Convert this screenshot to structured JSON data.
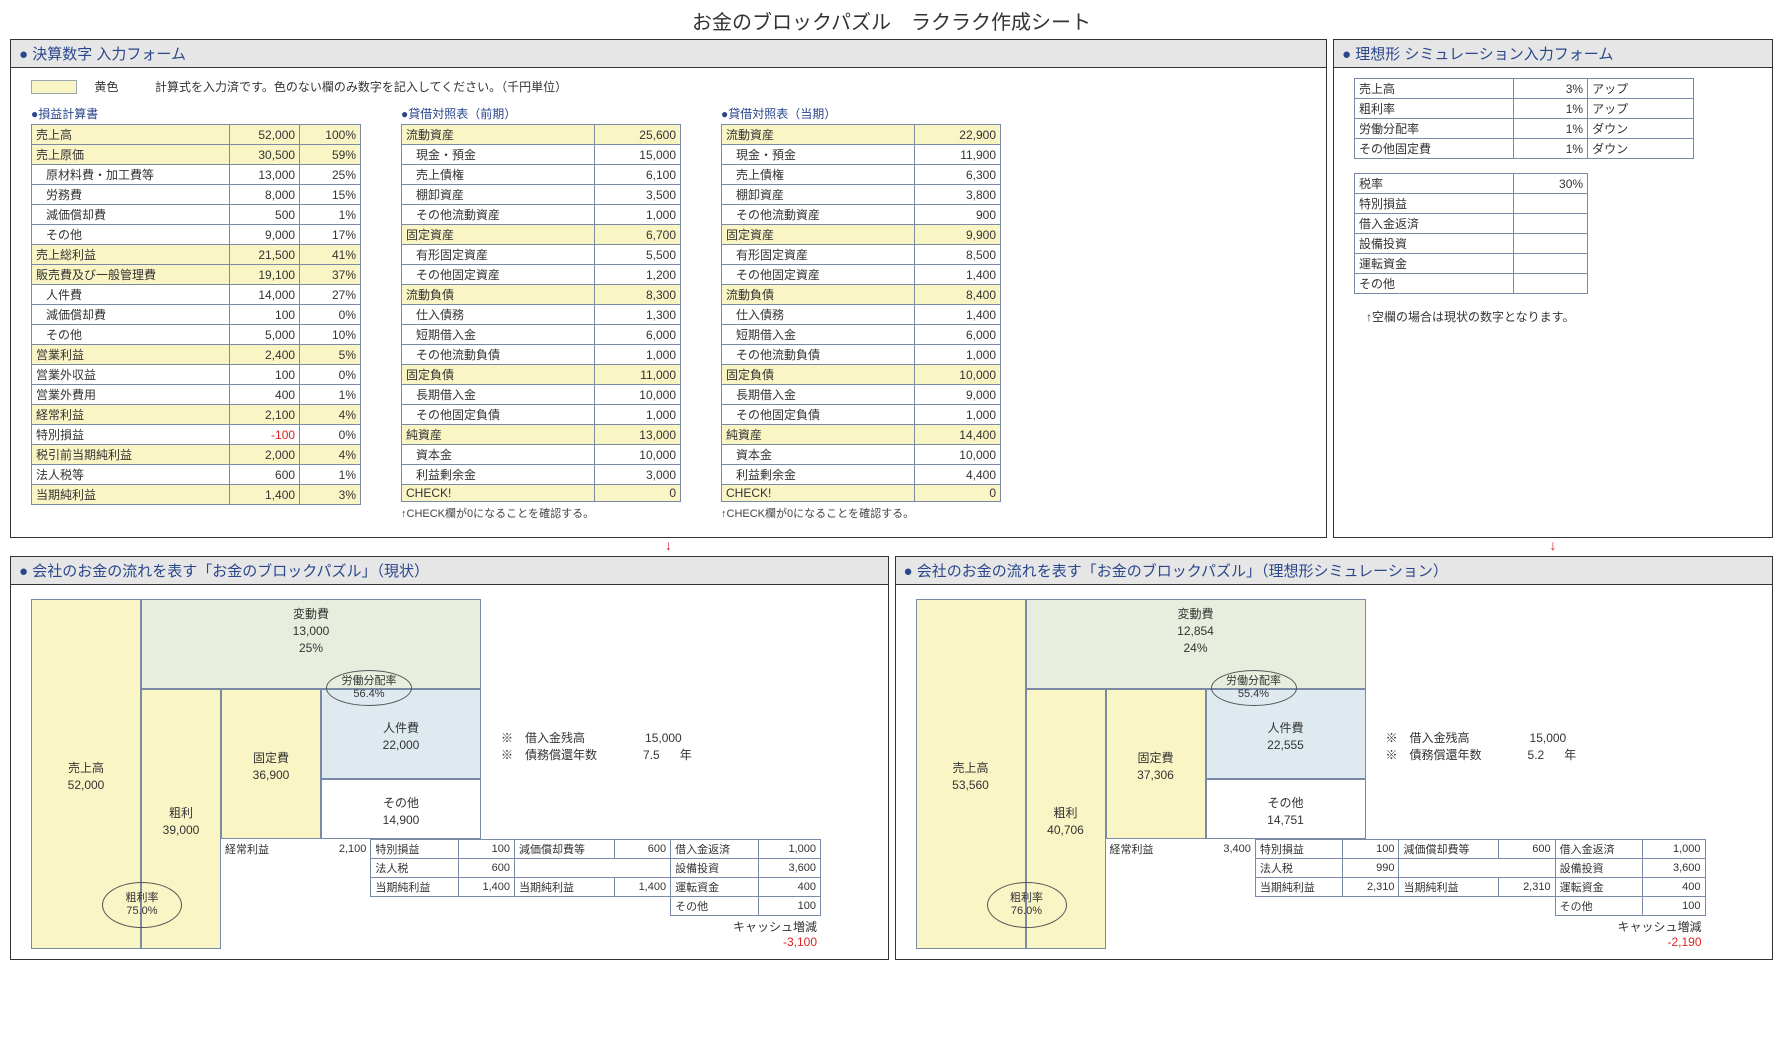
{
  "title": "お金のブロックパズル　ラクラク作成シート",
  "colors": {
    "highlight": "#faf5c5",
    "border": "#7a8aa6",
    "accent": "#2a478c",
    "negative": "#d22222",
    "varCost": "#e8eedd",
    "labor": "#dfeaf0",
    "panelHeaderBg": "#e6e6e6"
  },
  "topLeft": {
    "header": "● 決算数字 入力フォーム",
    "hintLabel": "黄色",
    "hintText": "計算式を入力済です。色のない欄のみ数字を記入してください。（千円単位）",
    "pl": {
      "title": "●損益計算書",
      "rows": [
        {
          "label": "売上高",
          "value": "52,000",
          "pct": "100%",
          "hl": true
        },
        {
          "label": "売上原価",
          "value": "30,500",
          "pct": "59%",
          "hl": true
        },
        {
          "label": "原材料費・加工費等",
          "value": "13,000",
          "pct": "25%",
          "indent": true
        },
        {
          "label": "労務費",
          "value": "8,000",
          "pct": "15%",
          "indent": true
        },
        {
          "label": "減価償却費",
          "value": "500",
          "pct": "1%",
          "indent": true
        },
        {
          "label": "その他",
          "value": "9,000",
          "pct": "17%",
          "indent": true
        },
        {
          "label": "売上総利益",
          "value": "21,500",
          "pct": "41%",
          "hl": true
        },
        {
          "label": "販売費及び一般管理費",
          "value": "19,100",
          "pct": "37%",
          "hl": true
        },
        {
          "label": "人件費",
          "value": "14,000",
          "pct": "27%",
          "indent": true
        },
        {
          "label": "減価償却費",
          "value": "100",
          "pct": "0%",
          "indent": true
        },
        {
          "label": "その他",
          "value": "5,000",
          "pct": "10%",
          "indent": true
        },
        {
          "label": "営業利益",
          "value": "2,400",
          "pct": "5%",
          "hl": true
        },
        {
          "label": "営業外収益",
          "value": "100",
          "pct": "0%"
        },
        {
          "label": "営業外費用",
          "value": "400",
          "pct": "1%"
        },
        {
          "label": "経常利益",
          "value": "2,100",
          "pct": "4%",
          "hl": true
        },
        {
          "label": "特別損益",
          "value": "-100",
          "pct": "0%",
          "neg": true
        },
        {
          "label": "税引前当期純利益",
          "value": "2,000",
          "pct": "4%",
          "hl": true
        },
        {
          "label": "法人税等",
          "value": "600",
          "pct": "1%"
        },
        {
          "label": "当期純利益",
          "value": "1,400",
          "pct": "3%",
          "hl": true
        }
      ]
    },
    "bsPrev": {
      "title": "●貸借対照表（前期）",
      "note": "↑CHECK欄が0になることを確認する。",
      "rows": [
        {
          "label": "流動資産",
          "value": "25,600",
          "hl": true
        },
        {
          "label": "現金・預金",
          "value": "15,000",
          "indent": true
        },
        {
          "label": "売上債権",
          "value": "6,100",
          "indent": true
        },
        {
          "label": "棚卸資産",
          "value": "3,500",
          "indent": true
        },
        {
          "label": "その他流動資産",
          "value": "1,000",
          "indent": true
        },
        {
          "label": "固定資産",
          "value": "6,700",
          "hl": true
        },
        {
          "label": "有形固定資産",
          "value": "5,500",
          "indent": true
        },
        {
          "label": "その他固定資産",
          "value": "1,200",
          "indent": true
        },
        {
          "label": "流動負債",
          "value": "8,300",
          "hl": true
        },
        {
          "label": "仕入債務",
          "value": "1,300",
          "indent": true
        },
        {
          "label": "短期借入金",
          "value": "6,000",
          "indent": true
        },
        {
          "label": "その他流動負債",
          "value": "1,000",
          "indent": true
        },
        {
          "label": "固定負債",
          "value": "11,000",
          "hl": true
        },
        {
          "label": "長期借入金",
          "value": "10,000",
          "indent": true
        },
        {
          "label": "その他固定負債",
          "value": "1,000",
          "indent": true
        },
        {
          "label": "純資産",
          "value": "13,000",
          "hl": true
        },
        {
          "label": "資本金",
          "value": "10,000",
          "indent": true
        },
        {
          "label": "利益剰余金",
          "value": "3,000",
          "indent": true
        },
        {
          "label": "CHECK!",
          "value": "0",
          "hl": true
        }
      ]
    },
    "bsCurr": {
      "title": "●貸借対照表（当期）",
      "note": "↑CHECK欄が0になることを確認する。",
      "rows": [
        {
          "label": "流動資産",
          "value": "22,900",
          "hl": true
        },
        {
          "label": "現金・預金",
          "value": "11,900",
          "indent": true
        },
        {
          "label": "売上債権",
          "value": "6,300",
          "indent": true
        },
        {
          "label": "棚卸資産",
          "value": "3,800",
          "indent": true
        },
        {
          "label": "その他流動資産",
          "value": "900",
          "indent": true
        },
        {
          "label": "固定資産",
          "value": "9,900",
          "hl": true
        },
        {
          "label": "有形固定資産",
          "value": "8,500",
          "indent": true
        },
        {
          "label": "その他固定資産",
          "value": "1,400",
          "indent": true
        },
        {
          "label": "流動負債",
          "value": "8,400",
          "hl": true
        },
        {
          "label": "仕入債務",
          "value": "1,400",
          "indent": true
        },
        {
          "label": "短期借入金",
          "value": "6,000",
          "indent": true
        },
        {
          "label": "その他流動負債",
          "value": "1,000",
          "indent": true
        },
        {
          "label": "固定負債",
          "value": "10,000",
          "hl": true
        },
        {
          "label": "長期借入金",
          "value": "9,000",
          "indent": true
        },
        {
          "label": "その他固定負債",
          "value": "1,000",
          "indent": true
        },
        {
          "label": "純資産",
          "value": "14,400",
          "hl": true
        },
        {
          "label": "資本金",
          "value": "10,000",
          "indent": true
        },
        {
          "label": "利益剰余金",
          "value": "4,400",
          "indent": true
        },
        {
          "label": "CHECK!",
          "value": "0",
          "hl": true
        }
      ]
    }
  },
  "topRight": {
    "header": "● 理想形 シミュレーション入力フォーム",
    "table1": [
      {
        "label": "売上高",
        "value": "3%",
        "note": "アップ"
      },
      {
        "label": "粗利率",
        "value": "1%",
        "note": "アップ"
      },
      {
        "label": "労働分配率",
        "value": "1%",
        "note": "ダウン"
      },
      {
        "label": "その他固定費",
        "value": "1%",
        "note": "ダウン"
      }
    ],
    "table2": [
      {
        "label": "税率",
        "value": "30%",
        "note": ""
      },
      {
        "label": "特別損益",
        "value": "",
        "note": ""
      },
      {
        "label": "借入金返済",
        "value": "",
        "note": ""
      },
      {
        "label": "設備投資",
        "value": "",
        "note": ""
      },
      {
        "label": "運転資金",
        "value": "",
        "note": ""
      },
      {
        "label": "その他",
        "value": "",
        "note": ""
      }
    ],
    "hint": "↑空欄の場合は現状の数字となります。"
  },
  "bottomLeft": {
    "header": "● 会社のお金の流れを表す「お金のブロックパズル」（現状）",
    "puzzle": {
      "salesLabel": "売上高",
      "salesValue": "52,000",
      "varLabel": "変動費",
      "varValue": "13,000",
      "varPct": "25%",
      "grossLabel": "粗利",
      "grossValue": "39,000",
      "grossRateLabel": "粗利率",
      "grossRate": "75.0%",
      "fixedLabel": "固定費",
      "fixedValue": "36,900",
      "laborLabel": "人件費",
      "laborValue": "22,000",
      "laborRateLabel": "労働分配率",
      "laborRate": "56.4%",
      "otherLabel": "その他",
      "otherValue": "14,900",
      "opLabel": "経常利益",
      "opValue": "2,100",
      "loanBalanceLabel": "※　借入金残高",
      "loanBalance": "15,000",
      "debtYearsLabel": "※　債務償還年数",
      "debtYears": "7.5",
      "yearsUnit": "年",
      "mini": {
        "r1": [
          "特別損益",
          "100",
          "減価償却費等",
          "600",
          "借入金返済",
          "1,000"
        ],
        "r2": [
          "法人税",
          "600",
          "",
          "",
          "設備投資",
          "3,600"
        ],
        "r3": [
          "当期純利益",
          "1,400",
          "当期純利益",
          "1,400",
          "運転資金",
          "400"
        ],
        "r4": [
          "",
          "",
          "",
          "",
          "その他",
          "100"
        ]
      },
      "cashLabel": "キャッシュ増減",
      "cashValue": "-3,100"
    }
  },
  "bottomRight": {
    "header": "● 会社のお金の流れを表す「お金のブロックパズル」（理想形シミュレーション）",
    "puzzle": {
      "salesLabel": "売上高",
      "salesValue": "53,560",
      "varLabel": "変動費",
      "varValue": "12,854",
      "varPct": "24%",
      "grossLabel": "粗利",
      "grossValue": "40,706",
      "grossRateLabel": "粗利率",
      "grossRate": "76.0%",
      "fixedLabel": "固定費",
      "fixedValue": "37,306",
      "laborLabel": "人件費",
      "laborValue": "22,555",
      "laborRateLabel": "労働分配率",
      "laborRate": "55.4%",
      "otherLabel": "その他",
      "otherValue": "14,751",
      "opLabel": "経常利益",
      "opValue": "3,400",
      "loanBalanceLabel": "※　借入金残高",
      "loanBalance": "15,000",
      "debtYearsLabel": "※　債務償還年数",
      "debtYears": "5.2",
      "yearsUnit": "年",
      "mini": {
        "r1": [
          "特別損益",
          "100",
          "減価償却費等",
          "600",
          "借入金返済",
          "1,000"
        ],
        "r2": [
          "法人税",
          "990",
          "",
          "",
          "設備投資",
          "3,600"
        ],
        "r3": [
          "当期純利益",
          "2,310",
          "当期純利益",
          "2,310",
          "運転資金",
          "400"
        ],
        "r4": [
          "",
          "",
          "",
          "",
          "その他",
          "100"
        ]
      },
      "cashLabel": "キャッシュ増減",
      "cashValue": "-2,190"
    }
  }
}
